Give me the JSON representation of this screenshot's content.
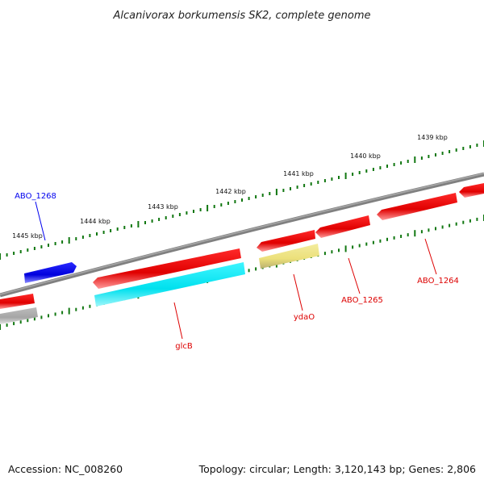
{
  "title": "Alcanivorax borkumensis SK2, complete genome",
  "ticks": [
    "1439 kbp",
    "1440 kbp",
    "1441 kbp",
    "1442 kbp",
    "1443 kbp",
    "1444 kbp",
    "1445 kbp"
  ],
  "genes": [
    {
      "name": "ABO_1268",
      "color": "#0000ee"
    },
    {
      "name": "ABO_1264",
      "color": "#dd0000"
    },
    {
      "name": "ABO_1265",
      "color": "#dd0000"
    },
    {
      "name": "ydaO",
      "color": "#dd0000"
    },
    {
      "name": "glcB",
      "color": "#dd0000"
    }
  ],
  "feature_colors": {
    "cds_forward": "#ee0000",
    "cds_reverse": "#ee0000",
    "rna_track": "#00e5ee",
    "misc_track": "#eee68c",
    "grey_track": "#aaaaaa",
    "backbone": "#808080",
    "ticks": "#117711"
  },
  "footer": {
    "accession": "Accession: NC_008260",
    "summary": "Topology: circular; Length: 3,120,143 bp; Genes: 2,806"
  }
}
